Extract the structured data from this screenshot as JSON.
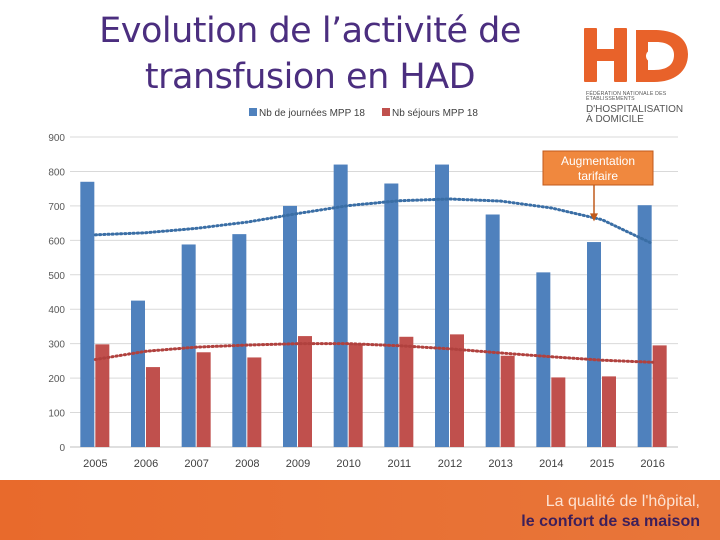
{
  "slide": {
    "title_line1": "Evolution de l’activité de",
    "title_line2": "transfusion en HAD"
  },
  "logo": {
    "org_small": "FÉDÉRATION NATIONALE DES ÉTABLISSEMENTS",
    "org_line1": "D'HOSPITALISATION",
    "org_line2": "À DOMICILE",
    "color": "#e8622a"
  },
  "footer": {
    "line1": "La qualité de l'hôpital,",
    "line2": "le confort de sa maison"
  },
  "chart_data": {
    "type": "bar",
    "title": "",
    "categories": [
      "2005",
      "2006",
      "2007",
      "2008",
      "2009",
      "2010",
      "2011",
      "2012",
      "2013",
      "2014",
      "2015",
      "2016"
    ],
    "series": [
      {
        "name": "Nb de journées MPP 18",
        "color": "#4f81bd",
        "values": [
          770,
          425,
          588,
          618,
          700,
          820,
          765,
          820,
          675,
          507,
          595,
          702
        ],
        "trend": [
          616,
          622,
          635,
          653,
          678,
          701,
          715,
          720,
          714,
          694,
          660,
          590
        ]
      },
      {
        "name": "Nb séjours MPP 18",
        "color": "#c0504d",
        "values": [
          298,
          232,
          275,
          260,
          322,
          300,
          320,
          327,
          265,
          202,
          205,
          295
        ],
        "trend": [
          254,
          278,
          290,
          296,
          300,
          300,
          294,
          285,
          273,
          262,
          252,
          246
        ]
      }
    ],
    "ylim": [
      0,
      900
    ],
    "yticks": [
      0,
      100,
      200,
      300,
      400,
      500,
      600,
      700,
      800,
      900
    ],
    "grid": true,
    "legend_position": "top",
    "annotation": {
      "text_line1": "Augmentation",
      "text_line2": "tarifaire",
      "category": "2015",
      "value": 655,
      "fill": "#f0883e",
      "text_color": "#ffffff"
    }
  }
}
